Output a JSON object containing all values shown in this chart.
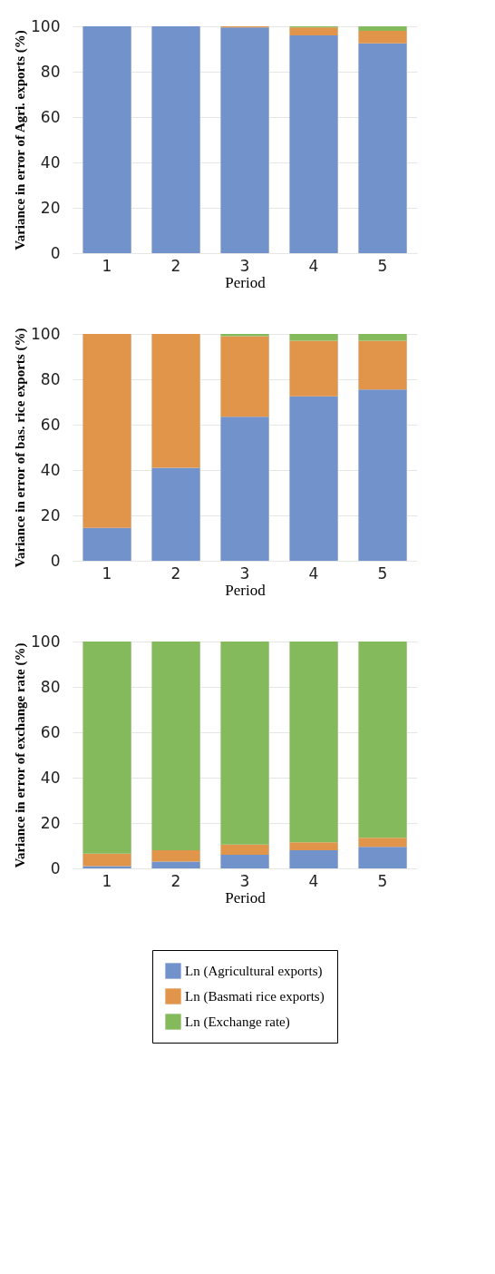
{
  "chart_data": [
    {
      "type": "bar",
      "stacked": true,
      "xlabel": "Period",
      "ylabel": "Variance in error of Agri. exports (%)",
      "categories": [
        "1",
        "2",
        "3",
        "4",
        "5"
      ],
      "ylim": [
        0,
        100
      ],
      "yticks": [
        0,
        20,
        40,
        60,
        80,
        100
      ],
      "grid": true,
      "series": [
        {
          "color": "#7192cb",
          "values": [
            100,
            100,
            99.5,
            96,
            92.5
          ]
        },
        {
          "color": "#e0954a",
          "values": [
            0,
            0,
            0.5,
            3.5,
            5.5
          ]
        },
        {
          "color": "#84b95c",
          "values": [
            0,
            0,
            0,
            0.5,
            2
          ]
        }
      ]
    },
    {
      "type": "bar",
      "stacked": true,
      "xlabel": "Period",
      "ylabel": "Variance in error of bas. rice exports (%)",
      "categories": [
        "1",
        "2",
        "3",
        "4",
        "5"
      ],
      "ylim": [
        0,
        100
      ],
      "yticks": [
        0,
        20,
        40,
        60,
        80,
        100
      ],
      "grid": true,
      "series": [
        {
          "color": "#7192cb",
          "values": [
            14.5,
            41,
            63.5,
            72.5,
            75.5
          ]
        },
        {
          "color": "#e0954a",
          "values": [
            85.5,
            59,
            35.5,
            24.5,
            21.5
          ]
        },
        {
          "color": "#84b95c",
          "values": [
            0,
            0,
            1,
            3,
            3
          ]
        }
      ]
    },
    {
      "type": "bar",
      "stacked": true,
      "xlabel": "Period",
      "ylabel": "Variance in error of exchange rate (%)",
      "categories": [
        "1",
        "2",
        "3",
        "4",
        "5"
      ],
      "ylim": [
        0,
        100
      ],
      "yticks": [
        0,
        20,
        40,
        60,
        80,
        100
      ],
      "grid": true,
      "legend": "bottom",
      "series": [
        {
          "name": "Ln (Agricultural exports)",
          "color": "#7192cb",
          "values": [
            1,
            3,
            6,
            8,
            9.5
          ]
        },
        {
          "name": "Ln (Basmati rice exports)",
          "color": "#e0954a",
          "values": [
            5.5,
            5,
            4.5,
            3.5,
            4
          ]
        },
        {
          "name": "Ln (Exchange rate)",
          "color": "#84b95c",
          "values": [
            93.5,
            92,
            89.5,
            88.5,
            86.5
          ]
        }
      ]
    }
  ]
}
